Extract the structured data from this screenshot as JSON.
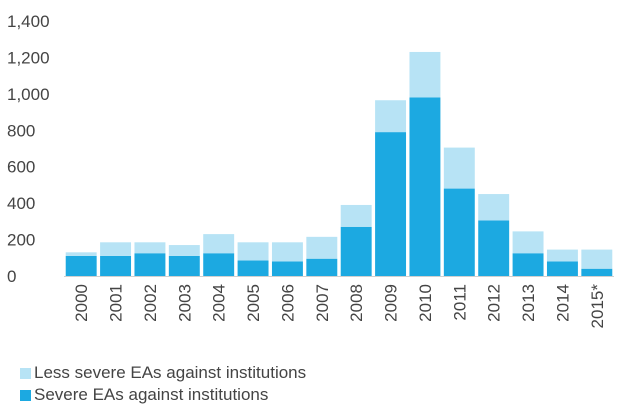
{
  "chart_data": {
    "type": "bar",
    "stacked": true,
    "categories": [
      "2000",
      "2001",
      "2002",
      "2003",
      "2004",
      "2005",
      "2006",
      "2007",
      "2008",
      "2009",
      "2010",
      "2011",
      "2012",
      "2013",
      "2014",
      "2015*"
    ],
    "series": [
      {
        "name": "Severe EAs against institutions",
        "color": "#1ca9e1",
        "values": [
          110,
          110,
          125,
          110,
          125,
          85,
          80,
          95,
          270,
          790,
          980,
          480,
          305,
          125,
          80,
          40
        ]
      },
      {
        "name": "Less severe EAs against institutions",
        "color": "#b7e3f5",
        "values": [
          20,
          75,
          60,
          60,
          105,
          100,
          105,
          120,
          120,
          175,
          250,
          225,
          145,
          120,
          65,
          105
        ]
      }
    ],
    "ylim": [
      0,
      1400
    ],
    "yticks": [
      "0",
      "200",
      "400",
      "600",
      "800",
      "1,000",
      "1,200",
      "1,400"
    ],
    "ytick_values": [
      0,
      200,
      400,
      600,
      800,
      1000,
      1200,
      1400
    ],
    "grid": false,
    "legend_position": "bottom-left"
  },
  "legend": {
    "items": [
      {
        "label": "Less severe EAs against institutions",
        "color": "#b7e3f5"
      },
      {
        "label": "Severe EAs against institutions",
        "color": "#1ca9e1"
      }
    ]
  }
}
